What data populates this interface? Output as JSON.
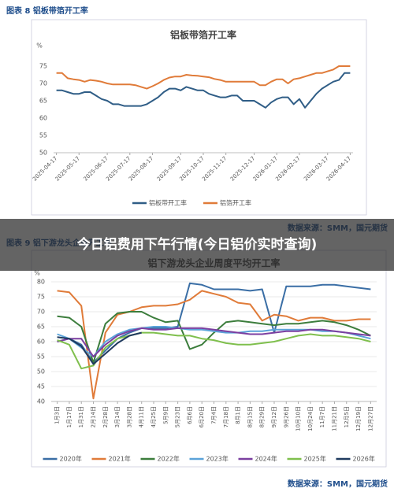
{
  "chart_data": [
    {
      "type": "line",
      "caption": "图表 8 铝板带箔开工率",
      "title": "铝板带箔开工率",
      "y_label": "%",
      "source": "数据来源：SMM，国元期货",
      "categories": [
        "2025-04-17",
        null,
        null,
        null,
        "2025-05-17",
        null,
        null,
        null,
        null,
        "2025-06-17",
        null,
        null,
        null,
        "2025-07-17",
        null,
        null,
        null,
        "2025-08-17",
        null,
        null,
        null,
        null,
        "2025-09-17",
        null,
        null,
        null,
        "2025-10-17",
        null,
        null,
        null,
        "2025-11-17",
        null,
        null,
        null,
        null,
        "2025-12-17",
        null,
        null,
        null,
        "2026-01-17",
        null,
        null,
        null,
        "2026-02-17",
        null,
        null,
        null,
        null,
        "2026-03-17",
        null,
        null,
        null,
        "2026-04-17"
      ],
      "series": [
        {
          "name": "铝板带开工率",
          "color": "#2f5d86",
          "values": [
            68,
            68,
            67.5,
            67,
            67,
            67.5,
            67.5,
            66.5,
            65.5,
            65,
            64,
            64,
            63.5,
            63.5,
            63.5,
            63.5,
            64,
            65,
            66,
            67.5,
            68.5,
            68.5,
            68,
            69,
            68.5,
            68,
            68,
            67,
            66.5,
            66,
            66,
            66.5,
            66.5,
            65,
            65,
            65,
            64,
            63,
            64.5,
            65.5,
            66,
            66,
            64,
            65.5,
            63,
            65,
            67,
            68.5,
            69.5,
            70.5,
            71,
            73,
            73
          ]
        },
        {
          "name": "铝箔开工率",
          "color": "#e07b39",
          "values": [
            73,
            73,
            71.5,
            71.2,
            71,
            70.5,
            71,
            70.8,
            70.5,
            70,
            69.7,
            69.7,
            69.7,
            69.7,
            69.5,
            69,
            68.5,
            69.2,
            70,
            71,
            71.7,
            72,
            72,
            72.5,
            72.3,
            72.2,
            72,
            71.8,
            71.3,
            71,
            70.5,
            70.5,
            70.5,
            70.5,
            70.5,
            70.5,
            69.5,
            69.5,
            70.5,
            71.2,
            71.2,
            70,
            71.2,
            71.5,
            72,
            72.5,
            73,
            73,
            73.5,
            74,
            75,
            75,
            75
          ]
        }
      ],
      "ylim": [
        50,
        75
      ],
      "yticks": [
        50,
        55,
        60,
        65,
        70,
        75
      ],
      "grid": false,
      "legend": "bottom"
    },
    {
      "type": "line",
      "caption": "图表 9 铝下游龙头企业开工率",
      "title": "铝下游龙头企业周度平均开工率",
      "y_label": "%",
      "source": "数据来源：SMM，国元期货",
      "categories": [
        "1月3日",
        "1月17日",
        "1月31日",
        "2月14日",
        "2月28日",
        "3月14日",
        "3月28日",
        "4月11日",
        "4月25日",
        "5月9日",
        "5月23日",
        "6月6日",
        "6月20日",
        "7月4日",
        "7月18日",
        "8月1日",
        "8月15日",
        "8月29日",
        "9月12日",
        "9月26日",
        "10月10日",
        "10月24日",
        "11月7日",
        "11月21日",
        "12月5日",
        "12月19日",
        "12月27日"
      ],
      "series": [
        {
          "name": "2020年",
          "color": "#3a6ea5",
          "values": [
            60,
            61,
            59,
            53,
            57,
            61,
            63,
            64.5,
            64.5,
            64.5,
            65,
            79.5,
            79,
            77.5,
            77.5,
            77.5,
            77,
            77.5,
            63,
            78.5,
            78.5,
            78.5,
            79,
            79,
            78.5,
            78,
            77.5
          ]
        },
        {
          "name": "2021年",
          "color": "#e07b39",
          "values": [
            77,
            76.5,
            72,
            41,
            63,
            69,
            70,
            71.5,
            72,
            72,
            72.5,
            74,
            77,
            76,
            75,
            73,
            72.5,
            67,
            69,
            68.5,
            67,
            68,
            68,
            67,
            67,
            67.5,
            67.5
          ]
        },
        {
          "name": "2022年",
          "color": "#3c7d3c",
          "values": [
            68.5,
            68,
            65,
            53,
            66,
            69.5,
            70,
            70,
            68,
            66.5,
            67,
            57.5,
            59,
            63,
            66.5,
            67,
            66.5,
            66,
            65.5,
            66,
            66,
            66.5,
            67,
            66.5,
            65.5,
            64,
            62
          ]
        },
        {
          "name": "2023年",
          "color": "#5ba3d9",
          "values": [
            62.5,
            61,
            58,
            55,
            60,
            62.5,
            64,
            64.5,
            65,
            65,
            64.5,
            64,
            64,
            63.5,
            63,
            63,
            63.5,
            63.5,
            64,
            64,
            64,
            64,
            63.5,
            63.5,
            63,
            62,
            61
          ]
        },
        {
          "name": "2024年",
          "color": "#7b3fa0",
          "values": [
            60,
            61,
            61,
            55,
            59,
            62,
            63.5,
            64.5,
            64,
            64,
            64.5,
            64.5,
            64.5,
            64,
            63.5,
            63,
            62.5,
            62.5,
            63,
            63.5,
            63.5,
            64,
            64,
            63.5,
            63,
            62.5,
            62
          ]
        },
        {
          "name": "2025年",
          "color": "#7fbf4d",
          "values": [
            60.5,
            59,
            51,
            52,
            58,
            61,
            62,
            63,
            63,
            62.5,
            62,
            62,
            61,
            60.5,
            59.5,
            59,
            59,
            59.5,
            60,
            61,
            62,
            62.5,
            62,
            62,
            61.5,
            61,
            60
          ]
        },
        {
          "name": "2026年",
          "color": "#1f3a5f",
          "values": [
            61.5,
            61,
            58.5,
            52.5,
            56,
            59.5,
            62,
            63,
            null,
            null,
            null,
            null,
            null,
            null,
            null,
            null,
            null,
            null,
            null,
            null,
            null,
            null,
            null,
            null,
            null,
            null,
            null
          ]
        }
      ],
      "ylim": [
        40,
        80
      ],
      "yticks": [
        40,
        45,
        50,
        55,
        60,
        65,
        70,
        75,
        80
      ],
      "grid": true,
      "legend": "bottom"
    }
  ],
  "overlay": {
    "title": "今日铝费用下午行情(今日铝价实时查询)"
  }
}
